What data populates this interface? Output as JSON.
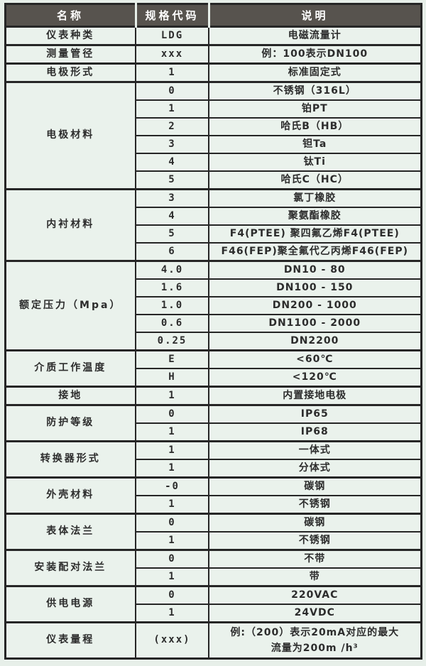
{
  "colors": {
    "page_bg": "#e7efe9",
    "cell_bg": "#eaf2ec",
    "header_bg": "#57534e",
    "header_text": "#ffffff",
    "border": "#262626",
    "text": "#2c2c2c"
  },
  "table": {
    "headers": [
      "名称",
      "规格代码",
      "说明"
    ],
    "groups": [
      {
        "name": "仪表种类",
        "rows": [
          {
            "code": "LDG",
            "desc": "电磁流量计"
          }
        ]
      },
      {
        "name": "测量管径",
        "rows": [
          {
            "code": "xxx",
            "desc": "例：100表示DN100"
          }
        ]
      },
      {
        "name": "电极形式",
        "rows": [
          {
            "code": "1",
            "desc": "标准固定式"
          }
        ]
      },
      {
        "name": "电极材料",
        "rows": [
          {
            "code": "0",
            "desc": "不锈钢（316L）"
          },
          {
            "code": "1",
            "desc": "铂PT"
          },
          {
            "code": "2",
            "desc": "哈氏B（HB）"
          },
          {
            "code": "3",
            "desc": "钽Ta"
          },
          {
            "code": "4",
            "desc": "钛Ti"
          },
          {
            "code": "5",
            "desc": "哈氏C（HC）"
          }
        ]
      },
      {
        "name": "内衬材料",
        "rows": [
          {
            "code": "3",
            "desc": "氯丁橡胶"
          },
          {
            "code": "4",
            "desc": "聚氨酯橡胶"
          },
          {
            "code": "5",
            "desc": "F4(PTEE) 聚四氟乙烯F4(PTEE)"
          },
          {
            "code": "6",
            "desc": "F46(FEP)聚全氟代乙丙烯F46(FEP)"
          }
        ]
      },
      {
        "name": "额定压力（Mpa）",
        "rows": [
          {
            "code": "4.0",
            "desc": "DN10 - 80"
          },
          {
            "code": "1.6",
            "desc": "DN100 - 150"
          },
          {
            "code": "1.0",
            "desc": "DN200 - 1000"
          },
          {
            "code": "0.6",
            "desc": "DN1100 - 2000"
          },
          {
            "code": "0.25",
            "desc": "DN2200"
          }
        ]
      },
      {
        "name": "介质工作温度",
        "rows": [
          {
            "code": "E",
            "desc": "<60℃"
          },
          {
            "code": "H",
            "desc": "<120℃"
          }
        ]
      },
      {
        "name": "接地",
        "rows": [
          {
            "code": "1",
            "desc": "内置接地电极"
          }
        ]
      },
      {
        "name": "防护等级",
        "rows": [
          {
            "code": "0",
            "desc": "IP65"
          },
          {
            "code": "1",
            "desc": "IP68"
          }
        ]
      },
      {
        "name": "转换器形式",
        "rows": [
          {
            "code": "1",
            "desc": "一体式"
          },
          {
            "code": "1",
            "desc": "分体式"
          }
        ]
      },
      {
        "name": "外壳材料",
        "rows": [
          {
            "code": "-0",
            "desc": "碳钢"
          },
          {
            "code": "1",
            "desc": "不锈钢"
          }
        ]
      },
      {
        "name": "表体法兰",
        "rows": [
          {
            "code": "0",
            "desc": "碳钢"
          },
          {
            "code": "1",
            "desc": "不锈钢"
          }
        ]
      },
      {
        "name": "安装配对法兰",
        "rows": [
          {
            "code": "0",
            "desc": "不带"
          },
          {
            "code": "1",
            "desc": "带"
          }
        ]
      },
      {
        "name": "供电电源",
        "rows": [
          {
            "code": "0",
            "desc": "220VAC"
          },
          {
            "code": "1",
            "desc": "24VDC"
          }
        ]
      },
      {
        "name": "仪表量程",
        "rows": [
          {
            "code": "(xxx)",
            "desc": "例:（200）表示20mA对应的最大",
            "desc2": "流量为200m /h³",
            "tall": true
          }
        ]
      }
    ]
  }
}
